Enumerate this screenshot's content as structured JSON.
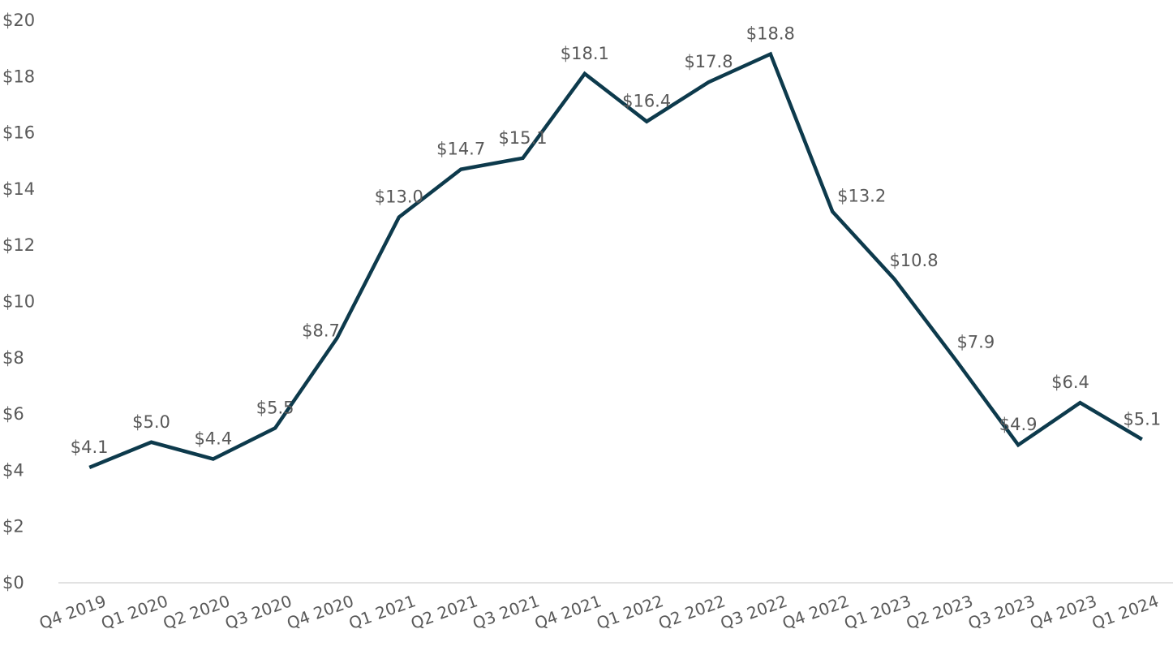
{
  "chart_data": {
    "type": "line",
    "title": "",
    "xlabel": "",
    "ylabel": "",
    "ylim": [
      0,
      20
    ],
    "y_ticks": [
      0,
      2,
      4,
      6,
      8,
      10,
      12,
      14,
      16,
      18,
      20
    ],
    "y_tick_labels": [
      "$0",
      "$2",
      "$4",
      "$6",
      "$8",
      "$10",
      "$12",
      "$14",
      "$16",
      "$18",
      "$20"
    ],
    "grid": false,
    "legend": "none",
    "categories": [
      "Q4 2019",
      "Q1 2020",
      "Q2 2020",
      "Q3 2020",
      "Q4 2020",
      "Q1 2021",
      "Q2 2021",
      "Q3 2021",
      "Q4 2021",
      "Q1 2022",
      "Q2 2022",
      "Q3 2022",
      "Q4 2022",
      "Q1 2023",
      "Q2 2023",
      "Q3 2023",
      "Q4 2023",
      "Q1 2024"
    ],
    "series": [
      {
        "name": "Value",
        "color": "#0d3a4c",
        "values": [
          4.1,
          5.0,
          4.4,
          5.5,
          8.7,
          13.0,
          14.7,
          15.1,
          18.1,
          16.4,
          17.8,
          18.8,
          13.2,
          10.8,
          7.9,
          4.9,
          6.4,
          5.1
        ],
        "labels": [
          "$4.1",
          "$5.0",
          "$4.4",
          "$5.5",
          "$8.7",
          "$13.0",
          "$14.7",
          "$15.1",
          "$18.1",
          "$16.4",
          "$17.8",
          "$18.8",
          "$13.2",
          "$10.8",
          "$7.9",
          "$4.9",
          "$6.4",
          "$5.1"
        ]
      }
    ]
  }
}
